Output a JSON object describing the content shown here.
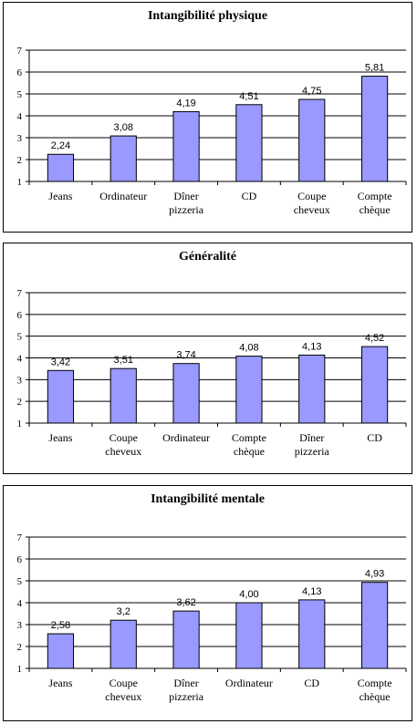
{
  "chart_data": [
    {
      "type": "bar",
      "title": "Intangibilité physique",
      "categories": [
        [
          "Jeans"
        ],
        [
          "Ordinateur"
        ],
        [
          "Dîner",
          "pizzeria"
        ],
        [
          "CD"
        ],
        [
          "Coupe",
          "cheveux"
        ],
        [
          "Compte",
          "chèque"
        ]
      ],
      "values": [
        2.24,
        3.08,
        4.19,
        4.51,
        4.75,
        5.81
      ],
      "value_labels": [
        "2,24",
        "3,08",
        "4,19",
        "4,51",
        "4,75",
        "5,81"
      ],
      "ylim": [
        1,
        7
      ],
      "yticks": [
        "1",
        "2",
        "3",
        "4",
        "5",
        "6",
        "7"
      ],
      "bar_color": "#9999ff",
      "grid": true
    },
    {
      "type": "bar",
      "title": "Généralité",
      "categories": [
        [
          "Jeans"
        ],
        [
          "Coupe",
          "cheveux"
        ],
        [
          "Ordinateur"
        ],
        [
          "Compte",
          "chèque"
        ],
        [
          "Dîner",
          "pizzeria"
        ],
        [
          "CD"
        ]
      ],
      "values": [
        3.42,
        3.51,
        3.74,
        4.08,
        4.13,
        4.52
      ],
      "value_labels": [
        "3,42",
        "3,51",
        "3,74",
        "4,08",
        "4,13",
        "4,52"
      ],
      "ylim": [
        1,
        7
      ],
      "yticks": [
        "1",
        "2",
        "3",
        "4",
        "5",
        "6",
        "7"
      ],
      "bar_color": "#9999ff",
      "grid": true
    },
    {
      "type": "bar",
      "title": "Intangibilité mentale",
      "categories": [
        [
          "Jeans"
        ],
        [
          "Coupe",
          "cheveux"
        ],
        [
          "Dîner",
          "pizzeria"
        ],
        [
          "Ordinateur"
        ],
        [
          "CD"
        ],
        [
          "Compte",
          "chèque"
        ]
      ],
      "values": [
        2.58,
        3.2,
        3.62,
        4.0,
        4.13,
        4.93
      ],
      "value_labels": [
        "2,58",
        "3,2",
        "3,62",
        "4,00",
        "4,13",
        "4,93"
      ],
      "ylim": [
        1,
        7
      ],
      "yticks": [
        "1",
        "2",
        "3",
        "4",
        "5",
        "6",
        "7"
      ],
      "bar_color": "#9999ff",
      "grid": true
    }
  ]
}
